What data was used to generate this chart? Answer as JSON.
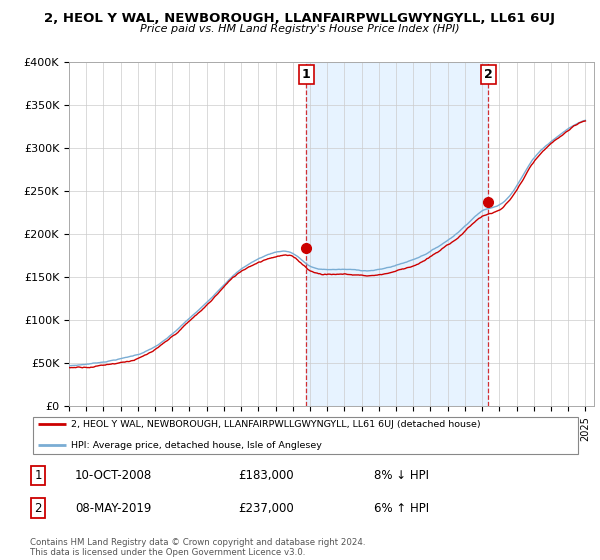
{
  "title": "2, HEOL Y WAL, NEWBOROUGH, LLANFAIRPWLLGWYNGYLL, LL61 6UJ",
  "subtitle": "Price paid vs. HM Land Registry's House Price Index (HPI)",
  "ylim": [
    0,
    400000
  ],
  "yticks": [
    0,
    50000,
    100000,
    150000,
    200000,
    250000,
    300000,
    350000,
    400000
  ],
  "ytick_labels": [
    "£0",
    "£50K",
    "£100K",
    "£150K",
    "£200K",
    "£250K",
    "£300K",
    "£350K",
    "£400K"
  ],
  "hpi_color": "#7aadd4",
  "price_color": "#cc0000",
  "shade_color": "#ddeeff",
  "sale1_x": 2008.78,
  "sale1_y": 183000,
  "sale2_x": 2019.36,
  "sale2_y": 237000,
  "legend_line1": "2, HEOL Y WAL, NEWBOROUGH, LLANFAIRPWLLGWYNGYLL, LL61 6UJ (detached house)",
  "legend_line2": "HPI: Average price, detached house, Isle of Anglesey",
  "table_row1": [
    "1",
    "10-OCT-2008",
    "£183,000",
    "8% ↓ HPI"
  ],
  "table_row2": [
    "2",
    "08-MAY-2019",
    "£237,000",
    "6% ↑ HPI"
  ],
  "footnote": "Contains HM Land Registry data © Crown copyright and database right 2024.\nThis data is licensed under the Open Government Licence v3.0.",
  "background_color": "#ffffff",
  "grid_color": "#cccccc",
  "xmin": 1995,
  "xmax": 2025
}
